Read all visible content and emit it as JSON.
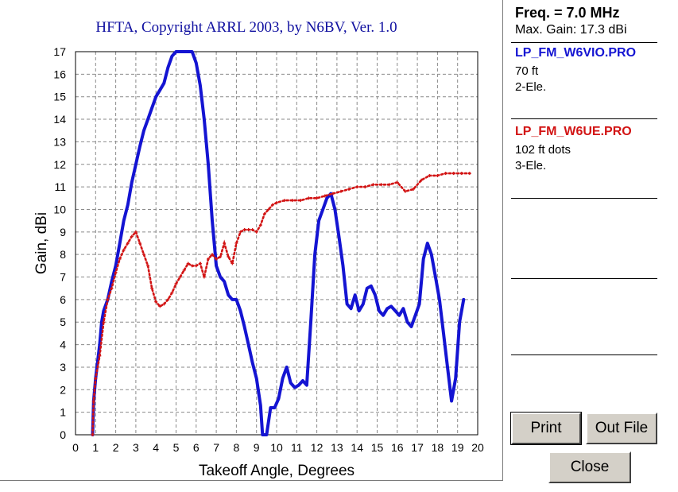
{
  "chart_data": {
    "type": "line",
    "title": "HFTA, Copyright ARRL 2003, by N6BV, Ver. 1.0",
    "xlabel": "Takeoff Angle, Degrees",
    "ylabel": "Gain, dBi",
    "xlim": [
      0,
      20
    ],
    "ylim": [
      0,
      17
    ],
    "xticks": [
      "0",
      "1",
      "2",
      "3",
      "4",
      "5",
      "6",
      "7",
      "8",
      "9",
      "10",
      "11",
      "12",
      "13",
      "14",
      "15",
      "16",
      "17",
      "18",
      "19",
      "20"
    ],
    "yticks": [
      "0",
      "1",
      "2",
      "3",
      "4",
      "5",
      "6",
      "7",
      "8",
      "9",
      "10",
      "11",
      "12",
      "13",
      "14",
      "15",
      "16",
      "17"
    ],
    "grid": true,
    "series": [
      {
        "name": "LP_FM_W6VIO.PRO",
        "color": "#1414d2",
        "style": "solid",
        "points": [
          [
            0.85,
            0
          ],
          [
            0.9,
            1.5
          ],
          [
            1.0,
            2.5
          ],
          [
            1.2,
            4.0
          ],
          [
            1.3,
            5.0
          ],
          [
            1.4,
            5.5
          ],
          [
            1.6,
            6.0
          ],
          [
            1.8,
            6.8
          ],
          [
            2.0,
            7.5
          ],
          [
            2.2,
            8.5
          ],
          [
            2.4,
            9.5
          ],
          [
            2.6,
            10.2
          ],
          [
            2.8,
            11.2
          ],
          [
            3.0,
            12.0
          ],
          [
            3.2,
            12.8
          ],
          [
            3.4,
            13.5
          ],
          [
            3.6,
            14.0
          ],
          [
            3.8,
            14.5
          ],
          [
            4.0,
            15.0
          ],
          [
            4.2,
            15.3
          ],
          [
            4.4,
            15.6
          ],
          [
            4.6,
            16.3
          ],
          [
            4.8,
            16.8
          ],
          [
            5.0,
            17.1
          ],
          [
            5.2,
            17.2
          ],
          [
            5.4,
            17.2
          ],
          [
            5.6,
            17.3
          ],
          [
            5.8,
            17.2
          ],
          [
            6.0,
            16.5
          ],
          [
            6.2,
            15.5
          ],
          [
            6.4,
            14.0
          ],
          [
            6.6,
            12.0
          ],
          [
            6.8,
            9.5
          ],
          [
            7.0,
            7.5
          ],
          [
            7.2,
            7.0
          ],
          [
            7.4,
            6.8
          ],
          [
            7.6,
            6.2
          ],
          [
            7.8,
            6.0
          ],
          [
            8.0,
            6.0
          ],
          [
            8.2,
            5.5
          ],
          [
            8.4,
            4.8
          ],
          [
            8.6,
            4.0
          ],
          [
            8.8,
            3.2
          ],
          [
            9.0,
            2.5
          ],
          [
            9.2,
            1.3
          ],
          [
            9.3,
            0
          ],
          [
            9.5,
            0
          ],
          [
            9.7,
            1.2
          ],
          [
            9.9,
            1.2
          ],
          [
            10.1,
            1.6
          ],
          [
            10.3,
            2.5
          ],
          [
            10.5,
            3.0
          ],
          [
            10.7,
            2.3
          ],
          [
            10.9,
            2.1
          ],
          [
            11.1,
            2.2
          ],
          [
            11.3,
            2.4
          ],
          [
            11.5,
            2.2
          ],
          [
            11.7,
            5.0
          ],
          [
            11.9,
            8.0
          ],
          [
            12.1,
            9.5
          ],
          [
            12.3,
            10.0
          ],
          [
            12.5,
            10.5
          ],
          [
            12.7,
            10.7
          ],
          [
            12.9,
            10.0
          ],
          [
            13.1,
            8.8
          ],
          [
            13.3,
            7.5
          ],
          [
            13.5,
            5.8
          ],
          [
            13.7,
            5.6
          ],
          [
            13.9,
            6.2
          ],
          [
            14.1,
            5.5
          ],
          [
            14.3,
            5.8
          ],
          [
            14.5,
            6.5
          ],
          [
            14.7,
            6.6
          ],
          [
            14.9,
            6.2
          ],
          [
            15.1,
            5.5
          ],
          [
            15.3,
            5.3
          ],
          [
            15.5,
            5.6
          ],
          [
            15.7,
            5.7
          ],
          [
            15.9,
            5.5
          ],
          [
            16.1,
            5.3
          ],
          [
            16.3,
            5.6
          ],
          [
            16.5,
            5.0
          ],
          [
            16.7,
            4.8
          ],
          [
            16.9,
            5.3
          ],
          [
            17.1,
            5.8
          ],
          [
            17.3,
            7.8
          ],
          [
            17.5,
            8.5
          ],
          [
            17.7,
            8.0
          ],
          [
            17.9,
            7.0
          ],
          [
            18.1,
            6.0
          ],
          [
            18.3,
            4.5
          ],
          [
            18.5,
            3.0
          ],
          [
            18.7,
            1.5
          ],
          [
            18.9,
            2.5
          ],
          [
            19.1,
            5.0
          ],
          [
            19.3,
            6.0
          ]
        ]
      },
      {
        "name": "LP_FM_W6UE.PRO",
        "color": "#d21414",
        "style": "dotted",
        "points": [
          [
            0.85,
            0
          ],
          [
            0.9,
            1.5
          ],
          [
            1.0,
            2.5
          ],
          [
            1.2,
            3.5
          ],
          [
            1.4,
            5.0
          ],
          [
            1.6,
            6.0
          ],
          [
            1.8,
            6.5
          ],
          [
            2.0,
            7.2
          ],
          [
            2.2,
            7.8
          ],
          [
            2.4,
            8.2
          ],
          [
            2.6,
            8.5
          ],
          [
            2.8,
            8.8
          ],
          [
            3.0,
            9.0
          ],
          [
            3.2,
            8.5
          ],
          [
            3.4,
            8.0
          ],
          [
            3.6,
            7.5
          ],
          [
            3.8,
            6.5
          ],
          [
            4.0,
            5.9
          ],
          [
            4.2,
            5.7
          ],
          [
            4.4,
            5.8
          ],
          [
            4.6,
            6.0
          ],
          [
            4.8,
            6.3
          ],
          [
            5.0,
            6.7
          ],
          [
            5.2,
            7.0
          ],
          [
            5.4,
            7.3
          ],
          [
            5.6,
            7.6
          ],
          [
            5.8,
            7.5
          ],
          [
            6.0,
            7.5
          ],
          [
            6.2,
            7.6
          ],
          [
            6.4,
            7.0
          ],
          [
            6.6,
            7.8
          ],
          [
            6.8,
            8.0
          ],
          [
            7.0,
            7.8
          ],
          [
            7.2,
            7.9
          ],
          [
            7.4,
            8.5
          ],
          [
            7.6,
            7.9
          ],
          [
            7.8,
            7.6
          ],
          [
            8.0,
            8.5
          ],
          [
            8.2,
            9.0
          ],
          [
            8.4,
            9.1
          ],
          [
            8.6,
            9.1
          ],
          [
            8.8,
            9.1
          ],
          [
            9.0,
            9.0
          ],
          [
            9.2,
            9.3
          ],
          [
            9.4,
            9.8
          ],
          [
            9.6,
            10.0
          ],
          [
            9.8,
            10.2
          ],
          [
            10.0,
            10.3
          ],
          [
            10.4,
            10.4
          ],
          [
            10.8,
            10.4
          ],
          [
            11.2,
            10.4
          ],
          [
            11.6,
            10.5
          ],
          [
            12.0,
            10.5
          ],
          [
            12.4,
            10.6
          ],
          [
            12.8,
            10.7
          ],
          [
            13.2,
            10.8
          ],
          [
            13.6,
            10.9
          ],
          [
            14.0,
            11.0
          ],
          [
            14.4,
            11.0
          ],
          [
            14.8,
            11.1
          ],
          [
            15.2,
            11.1
          ],
          [
            15.6,
            11.1
          ],
          [
            16.0,
            11.2
          ],
          [
            16.4,
            10.8
          ],
          [
            16.8,
            10.9
          ],
          [
            17.2,
            11.3
          ],
          [
            17.6,
            11.5
          ],
          [
            18.0,
            11.5
          ],
          [
            18.4,
            11.6
          ],
          [
            18.8,
            11.6
          ],
          [
            19.2,
            11.6
          ],
          [
            19.6,
            11.6
          ]
        ]
      }
    ]
  },
  "sidebar": {
    "freq_label": "Freq. = 7.0 MHz",
    "max_gain_label": "Max. Gain: 17.3 dBi",
    "entries": [
      {
        "file": "LP_FM_W6VIO.PRO",
        "line1": "70 ft",
        "line2": "2-Ele.",
        "color": "#1414d2"
      },
      {
        "file": "LP_FM_W6UE.PRO",
        "line1": "102 ft dots",
        "line2": "3-Ele.",
        "color": "#d21414"
      }
    ]
  },
  "buttons": {
    "print": "Print",
    "out_file": "Out File",
    "close": "Close"
  }
}
